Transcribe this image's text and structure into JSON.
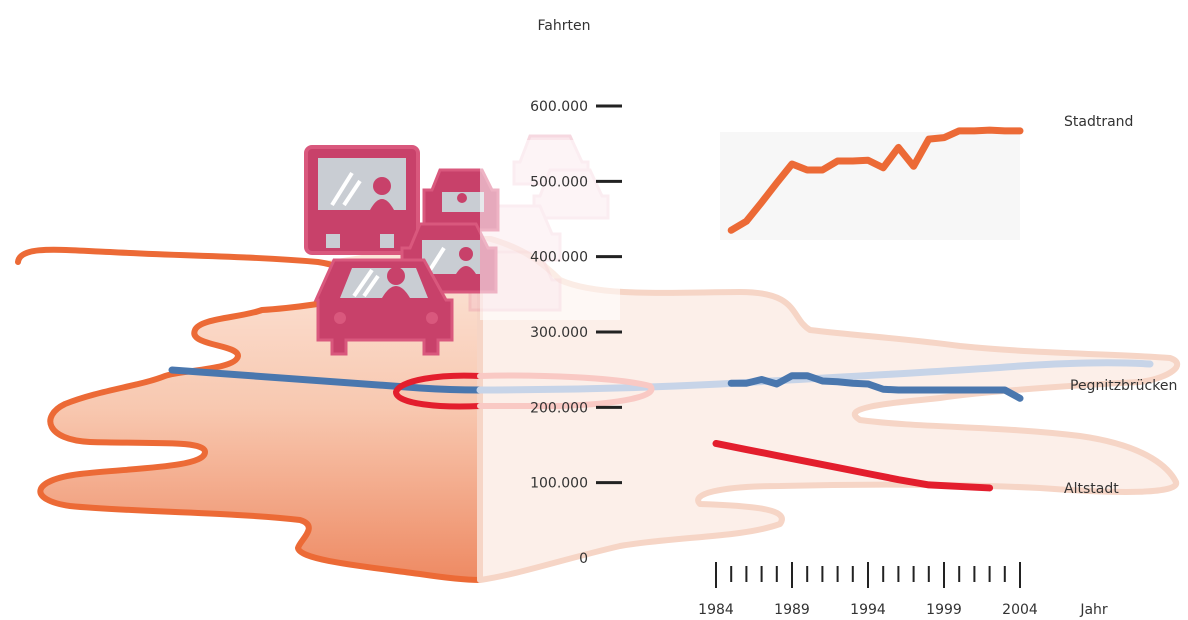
{
  "chart_data": {
    "type": "line",
    "ylabel": "Fahrten",
    "xlabel": "Jahr",
    "ylim": [
      0,
      600000
    ],
    "yticks": [
      {
        "value": 0,
        "label": "0"
      },
      {
        "value": 100000,
        "label": "100.000"
      },
      {
        "value": 200000,
        "label": "200.000"
      },
      {
        "value": 300000,
        "label": "300.000"
      },
      {
        "value": 400000,
        "label": "400.000"
      },
      {
        "value": 500000,
        "label": "500.000"
      },
      {
        "value": 600000,
        "label": "600.000"
      }
    ],
    "xlim": [
      1984,
      2004
    ],
    "xticks": [
      {
        "value": 1984,
        "label": "1984"
      },
      {
        "value": 1989,
        "label": "1989"
      },
      {
        "value": 1994,
        "label": "1994"
      },
      {
        "value": 1999,
        "label": "1999"
      },
      {
        "value": 2004,
        "label": "2004"
      }
    ],
    "series": [
      {
        "name": "Stadtrand",
        "color": "#EC6A36",
        "x": [
          1985,
          1986,
          1987,
          1988,
          1989,
          1990,
          1991,
          1992,
          1993,
          1994,
          1995,
          1996,
          1997,
          1998,
          1999,
          2000,
          2001,
          2002,
          2003,
          2004
        ],
        "y": [
          435000,
          447000,
          472000,
          498000,
          523000,
          515000,
          515000,
          527000,
          527000,
          528000,
          518000,
          545000,
          520000,
          556000,
          558000,
          567000,
          567000,
          568000,
          567000,
          567000
        ]
      },
      {
        "name": "Pegnitzbrücken",
        "color": "#4A77AE",
        "x": [
          1985,
          1986,
          1987,
          1988,
          1989,
          1990,
          1991,
          1992,
          1993,
          1994,
          1995,
          1996,
          1997,
          1998,
          1999,
          2000,
          2001,
          2002,
          2003,
          2004
        ],
        "y": [
          232000,
          232000,
          237000,
          231000,
          242000,
          242000,
          235000,
          234000,
          232000,
          231000,
          224000,
          223000,
          223000,
          223000,
          223000,
          223000,
          223000,
          223000,
          223000,
          212000
        ]
      },
      {
        "name": "Altstadt",
        "color": "#E31E2D",
        "x": [
          1984,
          1986,
          1988,
          1990,
          1992,
          1994,
          1996,
          1998,
          2000,
          2002
        ],
        "y": [
          152000,
          144000,
          136000,
          128000,
          120000,
          112000,
          104000,
          97000,
          95000,
          93000
        ]
      }
    ],
    "grid": false,
    "legend": "direct labels at line ends"
  },
  "illustration": {
    "subject": "pictogram of a bus and cars over a river map",
    "map_outline_color": "#EC6A36",
    "map_fill_color": "#F5B59A",
    "river_color": "#4A77AE",
    "center_ring_color": "#E31E2D",
    "vehicle_color": "#C8416A"
  }
}
